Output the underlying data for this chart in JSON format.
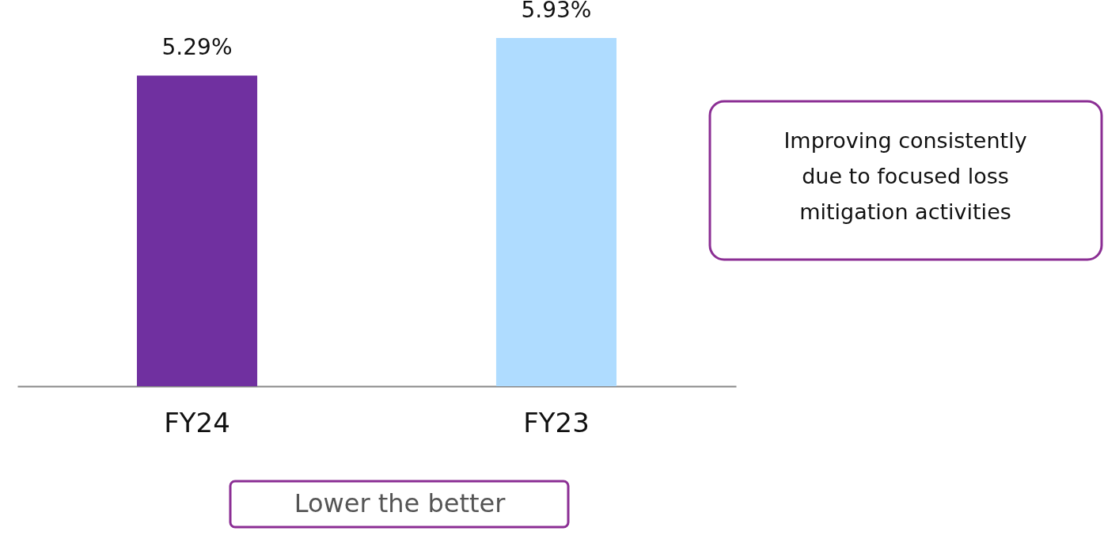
{
  "chart_data": {
    "type": "bar",
    "categories": [
      "FY24",
      "FY23"
    ],
    "values": [
      5.29,
      5.93
    ],
    "colors": [
      "#7030a0",
      "#afdcff"
    ],
    "value_labels": [
      "5.29%",
      "5.93%"
    ],
    "tick_labels": "x",
    "grid": false,
    "annotations": [
      "Improving consistently\ndue to focused loss\nmitigation activities",
      "Lower the better"
    ]
  }
}
